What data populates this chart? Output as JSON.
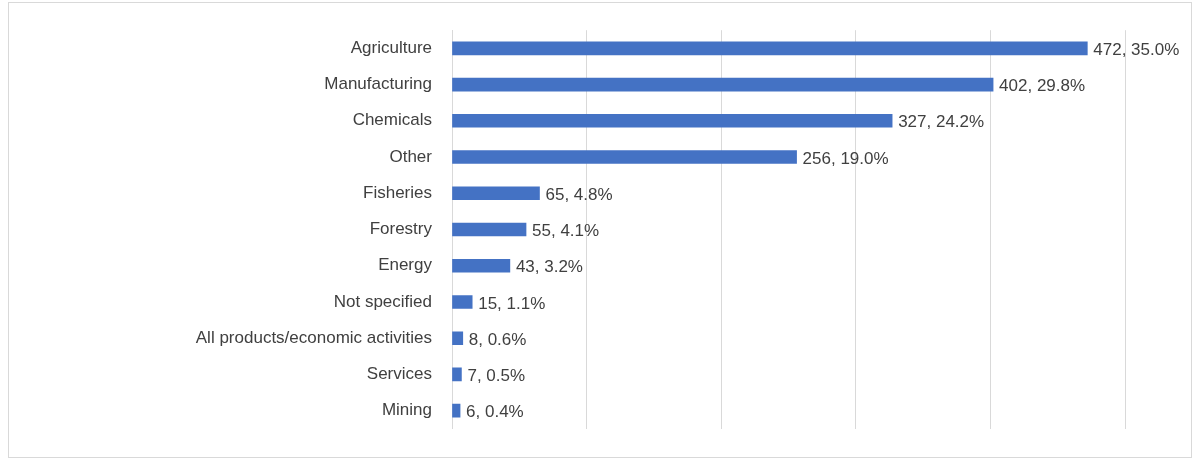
{
  "chart_data": {
    "type": "bar",
    "orientation": "horizontal",
    "categories": [
      "Agriculture",
      "Manufacturing",
      "Chemicals",
      "Other",
      "Fisheries",
      "Forestry",
      "Energy",
      "Not specified",
      "All products/economic activities",
      "Services",
      "Mining"
    ],
    "values": [
      472,
      402,
      327,
      256,
      65,
      55,
      43,
      15,
      8,
      7,
      6
    ],
    "value_labels": [
      "472, 35.0%",
      "402, 29.8%",
      "327, 24.2%",
      "256, 19.0%",
      "65, 4.8%",
      "55, 4.1%",
      "43, 3.2%",
      "15, 1.1%",
      "8, 0.6%",
      "7, 0.5%",
      "6, 0.4%"
    ],
    "color": "#4472c4",
    "xlim": [
      0,
      500
    ],
    "xticks": [
      {
        "value": 0,
        "label": null
      },
      {
        "value": 100,
        "label": null
      },
      {
        "value": 200,
        "label": null
      },
      {
        "value": 300,
        "label": null
      },
      {
        "value": 400,
        "label": null
      },
      {
        "value": 500,
        "label": null
      }
    ],
    "grid": "x",
    "tick_labels": "y"
  }
}
